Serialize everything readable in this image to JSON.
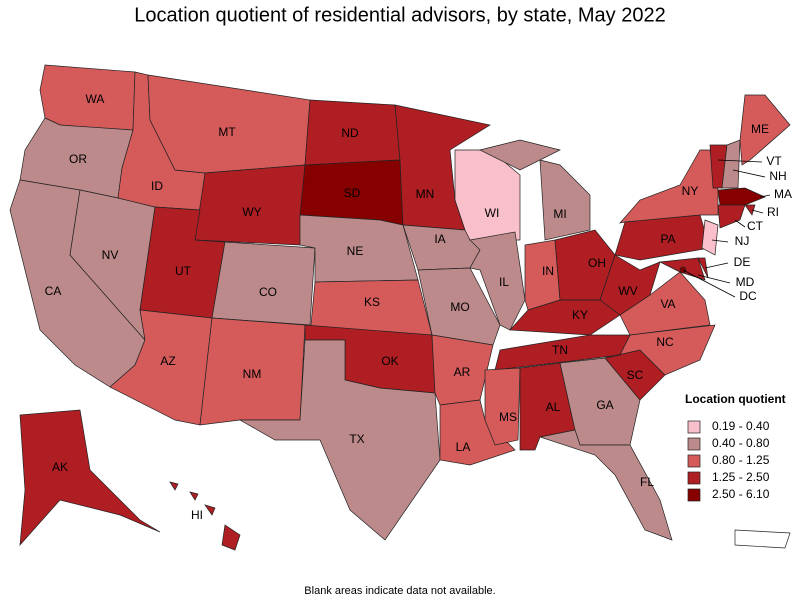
{
  "title": "Location quotient of residential advisors, by state, May 2022",
  "note": "Blank areas indicate data not available.",
  "legend": {
    "title": "Location quotient",
    "items": [
      {
        "label": "0.19 - 0.40",
        "color": "#f9c0cb"
      },
      {
        "label": "0.40 - 0.80",
        "color": "#bc8a8a"
      },
      {
        "label": "0.80 - 1.25",
        "color": "#d55b5b"
      },
      {
        "label": "1.25 - 2.50",
        "color": "#ae1e22"
      },
      {
        "label": "2.50 - 6.10",
        "color": "#870000"
      }
    ]
  },
  "states": [
    {
      "abbr": "WA",
      "color": "#d55b5b"
    },
    {
      "abbr": "OR",
      "color": "#bc8a8a"
    },
    {
      "abbr": "CA",
      "color": "#bc8a8a"
    },
    {
      "abbr": "NV",
      "color": "#bc8a8a"
    },
    {
      "abbr": "ID",
      "color": "#d55b5b"
    },
    {
      "abbr": "MT",
      "color": "#d55b5b"
    },
    {
      "abbr": "WY",
      "color": "#ae1e22"
    },
    {
      "abbr": "UT",
      "color": "#ae1e22"
    },
    {
      "abbr": "AZ",
      "color": "#d55b5b"
    },
    {
      "abbr": "CO",
      "color": "#bc8a8a"
    },
    {
      "abbr": "NM",
      "color": "#d55b5b"
    },
    {
      "abbr": "ND",
      "color": "#ae1e22"
    },
    {
      "abbr": "SD",
      "color": "#870000"
    },
    {
      "abbr": "NE",
      "color": "#bc8a8a"
    },
    {
      "abbr": "KS",
      "color": "#d55b5b"
    },
    {
      "abbr": "OK",
      "color": "#ae1e22"
    },
    {
      "abbr": "TX",
      "color": "#bc8a8a"
    },
    {
      "abbr": "MN",
      "color": "#ae1e22"
    },
    {
      "abbr": "IA",
      "color": "#bc8a8a"
    },
    {
      "abbr": "MO",
      "color": "#bc8a8a"
    },
    {
      "abbr": "AR",
      "color": "#d55b5b"
    },
    {
      "abbr": "LA",
      "color": "#d55b5b"
    },
    {
      "abbr": "WI",
      "color": "#f9c0cb"
    },
    {
      "abbr": "IL",
      "color": "#bc8a8a"
    },
    {
      "abbr": "MI",
      "color": "#bc8a8a"
    },
    {
      "abbr": "IN",
      "color": "#d55b5b"
    },
    {
      "abbr": "OH",
      "color": "#ae1e22"
    },
    {
      "abbr": "KY",
      "color": "#ae1e22"
    },
    {
      "abbr": "TN",
      "color": "#ae1e22"
    },
    {
      "abbr": "MS",
      "color": "#d55b5b"
    },
    {
      "abbr": "AL",
      "color": "#ae1e22"
    },
    {
      "abbr": "GA",
      "color": "#bc8a8a"
    },
    {
      "abbr": "FL",
      "color": "#bc8a8a"
    },
    {
      "abbr": "SC",
      "color": "#ae1e22"
    },
    {
      "abbr": "NC",
      "color": "#d55b5b"
    },
    {
      "abbr": "VA",
      "color": "#d55b5b"
    },
    {
      "abbr": "WV",
      "color": "#ae1e22"
    },
    {
      "abbr": "PA",
      "color": "#ae1e22"
    },
    {
      "abbr": "NY",
      "color": "#d55b5b"
    },
    {
      "abbr": "VT",
      "color": "#ae1e22"
    },
    {
      "abbr": "NH",
      "color": "#bc8a8a"
    },
    {
      "abbr": "ME",
      "color": "#d55b5b"
    },
    {
      "abbr": "MA",
      "color": "#870000"
    },
    {
      "abbr": "RI",
      "color": "#ae1e22"
    },
    {
      "abbr": "CT",
      "color": "#ae1e22"
    },
    {
      "abbr": "NJ",
      "color": "#f9c0cb"
    },
    {
      "abbr": "DE",
      "color": "#ae1e22"
    },
    {
      "abbr": "MD",
      "color": "#ae1e22"
    },
    {
      "abbr": "DC",
      "color": "#870000"
    },
    {
      "abbr": "AK",
      "color": "#ae1e22"
    },
    {
      "abbr": "HI",
      "color": "#ae1e22"
    }
  ]
}
